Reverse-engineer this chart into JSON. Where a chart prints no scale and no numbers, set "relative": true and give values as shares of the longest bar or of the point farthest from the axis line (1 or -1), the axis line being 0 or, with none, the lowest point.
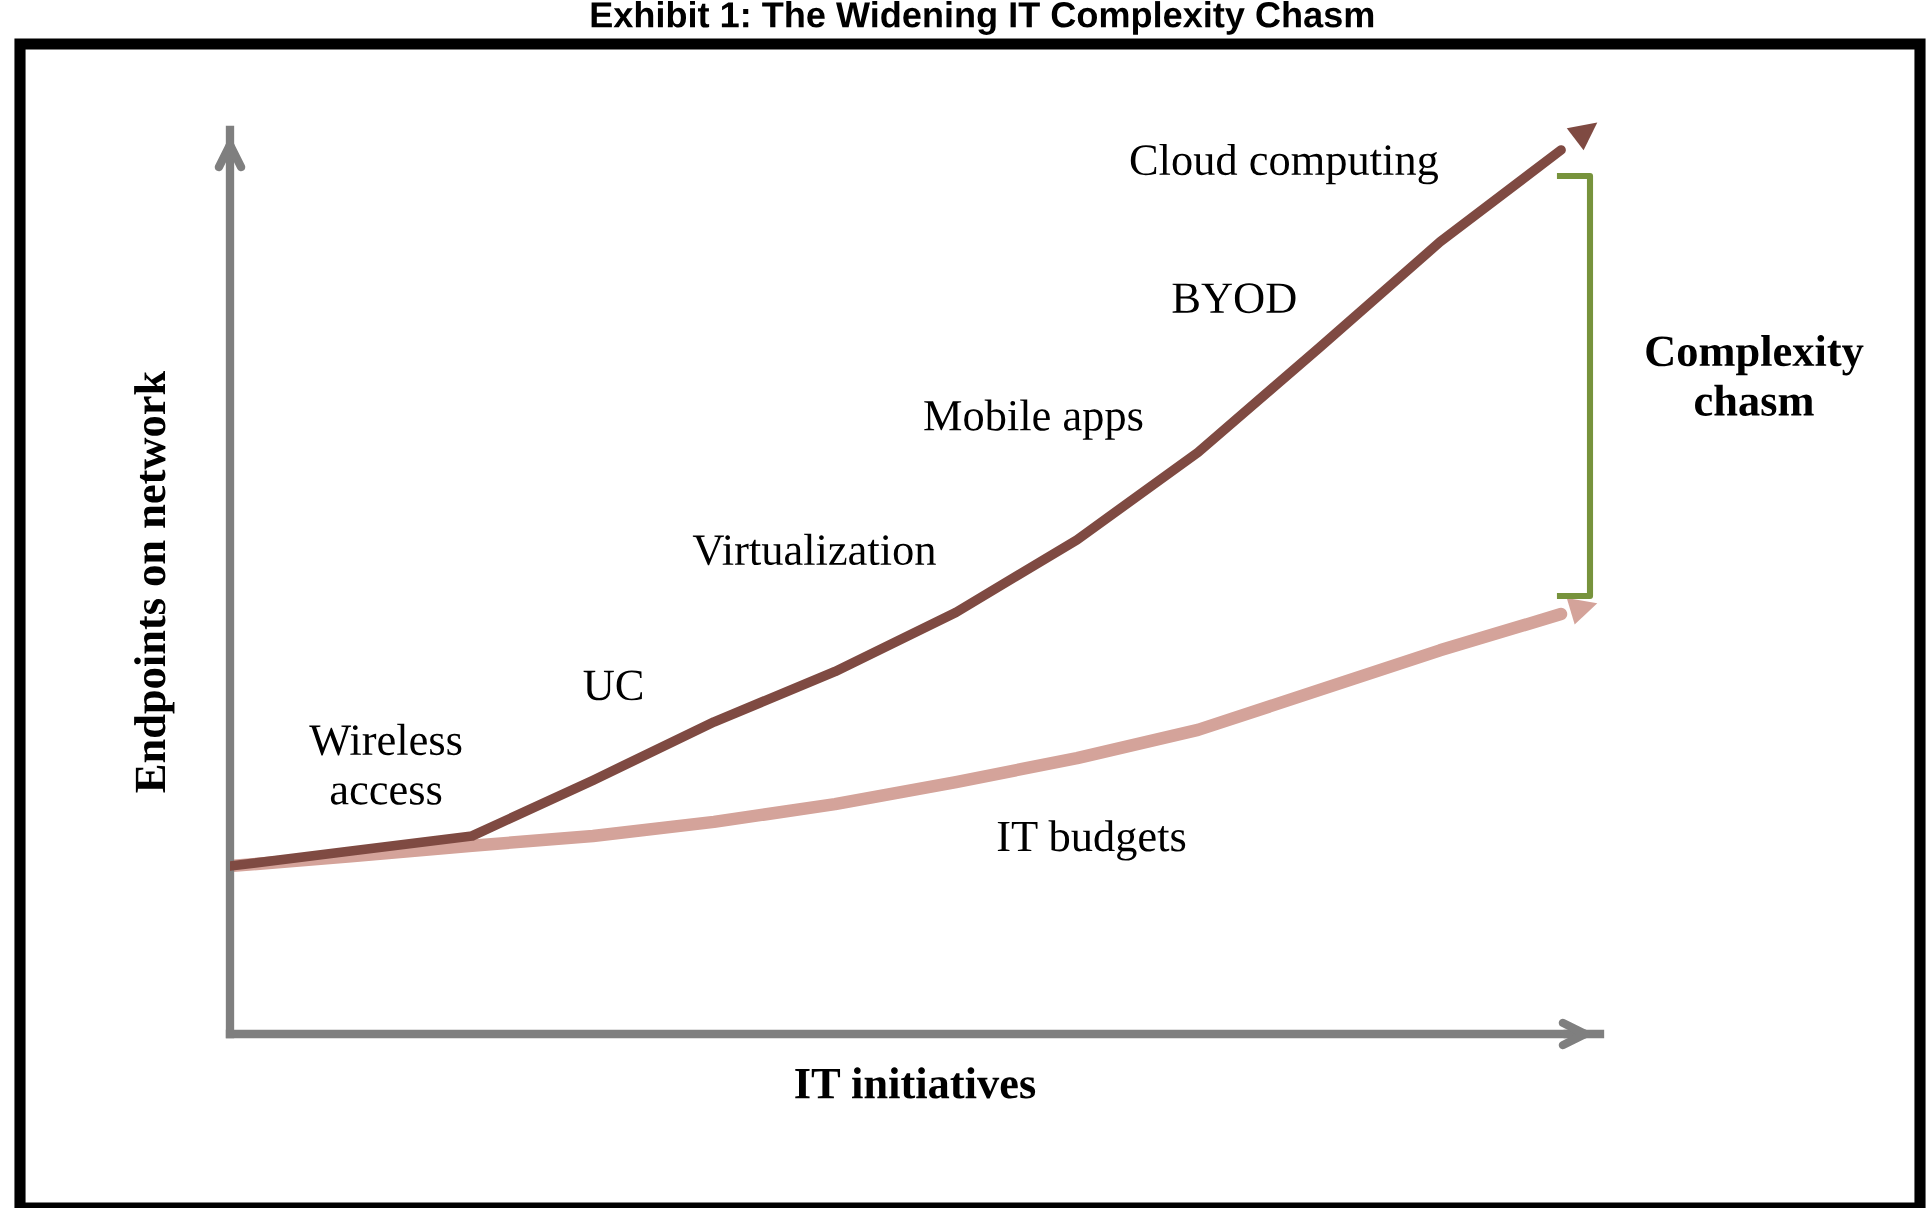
{
  "chart_data": {
    "type": "line",
    "title": "Exhibit 1: The Widening IT Complexity Chasm",
    "xlabel": "IT initiatives",
    "ylabel": "Endpoints on network",
    "relative": true,
    "categories": [
      null,
      null,
      null,
      null,
      null,
      null,
      null,
      null,
      null,
      null,
      null,
      null
    ],
    "series": [
      {
        "color": "#7f4a42",
        "values": [
          0.19,
          0.207,
          0.224,
          0.287,
          0.353,
          0.41,
          0.477,
          0.559,
          0.658,
          0.776,
          0.896,
          1
        ]
      },
      {
        "name": "IT budgets",
        "color": "#d4a39a",
        "values": [
          0.19,
          0.201,
          0.213,
          0.224,
          0.24,
          0.26,
          0.285,
          0.312,
          0.344,
          0.389,
          0.434,
          0.475
        ]
      }
    ],
    "annotations": [
      "Wireless\naccess",
      "UC",
      "Virtualization",
      "Mobile apps",
      "BYOD",
      "Cloud computing",
      "Complexity\nchasm"
    ],
    "legend": false,
    "marker": "none",
    "line_style": "solid"
  }
}
